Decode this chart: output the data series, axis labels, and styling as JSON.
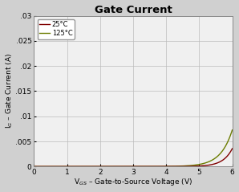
{
  "title": "Gate Current",
  "xlabel": "V$_{GS}$ – Gate-to-Source Voltage (V)",
  "ylabel": "I$_{G}$ – Gate Current (A)",
  "xlim": [
    0,
    6
  ],
  "ylim": [
    0,
    0.03
  ],
  "xticks": [
    0,
    1,
    2,
    3,
    4,
    5,
    6
  ],
  "yticks": [
    0,
    0.005,
    0.01,
    0.015,
    0.02,
    0.025,
    0.03
  ],
  "ytick_labels": [
    "0",
    ".005",
    ".01",
    ".015",
    ".02",
    ".025",
    ".03"
  ],
  "color_25": "#800000",
  "color_125": "#6b7c00",
  "legend_25": "25°C",
  "legend_125": "125°C",
  "grid_color": "#bbbbbb",
  "bg_color": "#f0f0f0",
  "outer_bg": "#d0d0d0",
  "title_fontsize": 9.5,
  "label_fontsize": 6.5,
  "tick_fontsize": 6.5,
  "curve_25_i0": 0.0001,
  "curve_25_vt": 0.28,
  "curve_25_vknee": 5.0,
  "curve_125_i0": 0.0001,
  "curve_125_vt": 0.35,
  "curve_125_vknee": 4.5
}
